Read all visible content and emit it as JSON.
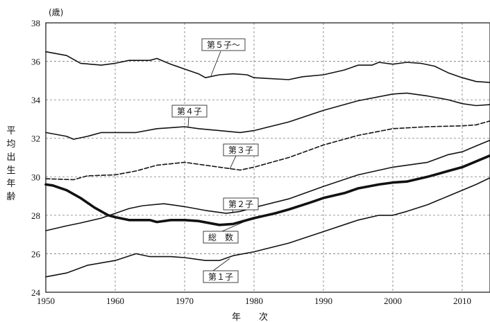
{
  "chart_data": {
    "type": "line",
    "unit_label": "(歳)",
    "ylabel": "平均出生年齢",
    "xlabel": "年　　次",
    "xlim": [
      1950,
      2014
    ],
    "ylim": [
      24,
      38
    ],
    "x_ticks": [
      1950,
      1960,
      1970,
      1980,
      1990,
      2000,
      2010
    ],
    "y_ticks": [
      24,
      26,
      28,
      30,
      32,
      34,
      36,
      38
    ],
    "grid": true,
    "series": [
      {
        "name": "第５子～",
        "style": "solid",
        "points": [
          [
            1950,
            36.5
          ],
          [
            1953,
            36.3
          ],
          [
            1955,
            35.9
          ],
          [
            1958,
            35.8
          ],
          [
            1960,
            35.9
          ],
          [
            1962,
            36.05
          ],
          [
            1965,
            36.05
          ],
          [
            1966,
            36.15
          ],
          [
            1968,
            35.85
          ],
          [
            1970,
            35.6
          ],
          [
            1972,
            35.35
          ],
          [
            1973,
            35.15
          ],
          [
            1975,
            35.3
          ],
          [
            1977,
            35.35
          ],
          [
            1979,
            35.3
          ],
          [
            1980,
            35.15
          ],
          [
            1985,
            35.05
          ],
          [
            1987,
            35.2
          ],
          [
            1990,
            35.3
          ],
          [
            1993,
            35.55
          ],
          [
            1995,
            35.8
          ],
          [
            1997,
            35.8
          ],
          [
            1998,
            35.95
          ],
          [
            2000,
            35.85
          ],
          [
            2002,
            35.95
          ],
          [
            2004,
            35.9
          ],
          [
            2006,
            35.75
          ],
          [
            2008,
            35.4
          ],
          [
            2010,
            35.15
          ],
          [
            2012,
            34.95
          ],
          [
            2014,
            34.9
          ]
        ]
      },
      {
        "name": "第４子",
        "style": "solid",
        "points": [
          [
            1950,
            32.3
          ],
          [
            1953,
            32.1
          ],
          [
            1954,
            31.95
          ],
          [
            1956,
            32.1
          ],
          [
            1958,
            32.3
          ],
          [
            1960,
            32.3
          ],
          [
            1963,
            32.3
          ],
          [
            1966,
            32.5
          ],
          [
            1970,
            32.6
          ],
          [
            1972,
            32.5
          ],
          [
            1975,
            32.4
          ],
          [
            1978,
            32.3
          ],
          [
            1980,
            32.4
          ],
          [
            1985,
            32.85
          ],
          [
            1990,
            33.45
          ],
          [
            1995,
            33.95
          ],
          [
            2000,
            34.3
          ],
          [
            2002,
            34.35
          ],
          [
            2005,
            34.2
          ],
          [
            2008,
            34.0
          ],
          [
            2010,
            33.8
          ],
          [
            2012,
            33.7
          ],
          [
            2014,
            33.75
          ]
        ]
      },
      {
        "name": "第３子",
        "style": "dashed",
        "points": [
          [
            1950,
            29.9
          ],
          [
            1954,
            29.85
          ],
          [
            1956,
            30.05
          ],
          [
            1960,
            30.1
          ],
          [
            1963,
            30.3
          ],
          [
            1966,
            30.6
          ],
          [
            1970,
            30.75
          ],
          [
            1975,
            30.5
          ],
          [
            1978,
            30.35
          ],
          [
            1980,
            30.5
          ],
          [
            1985,
            31.0
          ],
          [
            1990,
            31.65
          ],
          [
            1995,
            32.15
          ],
          [
            2000,
            32.5
          ],
          [
            2005,
            32.6
          ],
          [
            2010,
            32.65
          ],
          [
            2012,
            32.7
          ],
          [
            2014,
            32.9
          ]
        ]
      },
      {
        "name": "第２子",
        "style": "solid",
        "points": [
          [
            1950,
            27.2
          ],
          [
            1953,
            27.45
          ],
          [
            1955,
            27.6
          ],
          [
            1958,
            27.85
          ],
          [
            1960,
            28.1
          ],
          [
            1962,
            28.35
          ],
          [
            1964,
            28.5
          ],
          [
            1967,
            28.6
          ],
          [
            1970,
            28.45
          ],
          [
            1973,
            28.25
          ],
          [
            1976,
            28.1
          ],
          [
            1978,
            28.2
          ],
          [
            1980,
            28.4
          ],
          [
            1985,
            28.85
          ],
          [
            1990,
            29.5
          ],
          [
            1995,
            30.1
          ],
          [
            2000,
            30.5
          ],
          [
            2005,
            30.75
          ],
          [
            2008,
            31.15
          ],
          [
            2010,
            31.3
          ],
          [
            2012,
            31.6
          ],
          [
            2014,
            31.9
          ]
        ]
      },
      {
        "name": "総　数",
        "style": "bold",
        "points": [
          [
            1950,
            29.6
          ],
          [
            1951,
            29.55
          ],
          [
            1953,
            29.3
          ],
          [
            1955,
            28.9
          ],
          [
            1957,
            28.4
          ],
          [
            1959,
            28.0
          ],
          [
            1960,
            27.9
          ],
          [
            1962,
            27.75
          ],
          [
            1965,
            27.75
          ],
          [
            1966,
            27.65
          ],
          [
            1968,
            27.75
          ],
          [
            1970,
            27.75
          ],
          [
            1972,
            27.7
          ],
          [
            1975,
            27.5
          ],
          [
            1977,
            27.55
          ],
          [
            1980,
            27.85
          ],
          [
            1983,
            28.1
          ],
          [
            1985,
            28.3
          ],
          [
            1988,
            28.65
          ],
          [
            1990,
            28.9
          ],
          [
            1993,
            29.15
          ],
          [
            1995,
            29.4
          ],
          [
            1998,
            29.6
          ],
          [
            2000,
            29.7
          ],
          [
            2002,
            29.75
          ],
          [
            2005,
            30.0
          ],
          [
            2008,
            30.3
          ],
          [
            2010,
            30.5
          ],
          [
            2012,
            30.8
          ],
          [
            2014,
            31.1
          ]
        ]
      },
      {
        "name": "第１子",
        "style": "solid",
        "points": [
          [
            1950,
            24.8
          ],
          [
            1953,
            25.0
          ],
          [
            1956,
            25.4
          ],
          [
            1960,
            25.65
          ],
          [
            1963,
            26.0
          ],
          [
            1965,
            25.85
          ],
          [
            1968,
            25.85
          ],
          [
            1970,
            25.8
          ],
          [
            1973,
            25.65
          ],
          [
            1975,
            25.65
          ],
          [
            1977,
            25.9
          ],
          [
            1980,
            26.1
          ],
          [
            1985,
            26.55
          ],
          [
            1990,
            27.15
          ],
          [
            1995,
            27.75
          ],
          [
            1998,
            28.0
          ],
          [
            2000,
            28.0
          ],
          [
            2002,
            28.2
          ],
          [
            2005,
            28.55
          ],
          [
            2008,
            29.0
          ],
          [
            2010,
            29.3
          ],
          [
            2012,
            29.6
          ],
          [
            2014,
            29.95
          ]
        ]
      }
    ]
  }
}
